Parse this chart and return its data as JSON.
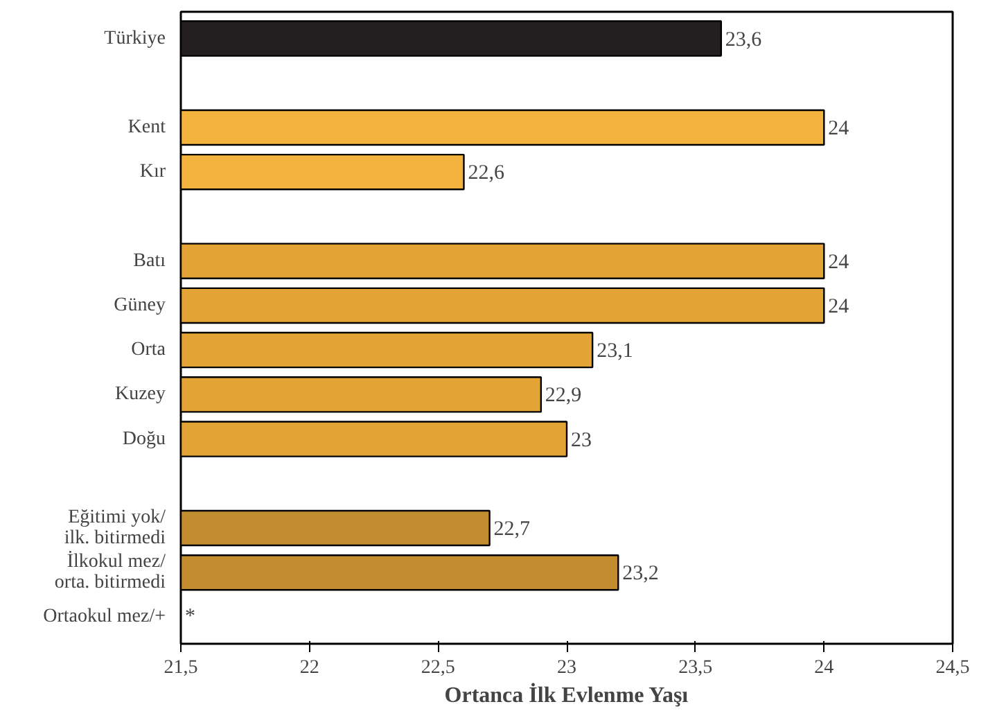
{
  "chart_data": {
    "type": "bar",
    "orientation": "horizontal",
    "xlabel": "Ortanca İlk Evlenme Yaşı",
    "categories": [
      "Türkiye",
      null,
      "Kent",
      "Kır",
      null,
      "Batı",
      "Güney",
      "Orta",
      "Kuzey",
      "Doğu",
      null,
      "Eğitimi yok/\nilk. bitirmedi",
      "İlkokul mez/\norta. bitirmedi",
      "Ortaokul mez/+"
    ],
    "values": [
      23.6,
      null,
      24,
      22.6,
      null,
      24,
      24,
      23.1,
      22.9,
      23,
      null,
      22.7,
      23.2,
      null
    ],
    "value_labels": [
      "23,6",
      null,
      "24",
      "22,6",
      null,
      "24",
      "24",
      "23,1",
      "22,9",
      "23",
      null,
      "22,7",
      "23,2",
      "*"
    ],
    "colors": [
      "#231f20",
      null,
      "#f4b23e",
      "#f4b23e",
      null,
      "#e4a335",
      "#e4a335",
      "#e4a335",
      "#e4a335",
      "#e4a335",
      null,
      "#c28d2f",
      "#c28d2f",
      null
    ],
    "xlim": [
      21.5,
      24.5
    ],
    "xticks": [
      {
        "value": 21.5,
        "label": "21,5"
      },
      22,
      {
        "value": 22.5,
        "label": "22,5"
      },
      23,
      {
        "value": 23.5,
        "label": "23,5"
      },
      24,
      {
        "value": 24.5,
        "label": "24,5"
      }
    ],
    "grid": false
  }
}
